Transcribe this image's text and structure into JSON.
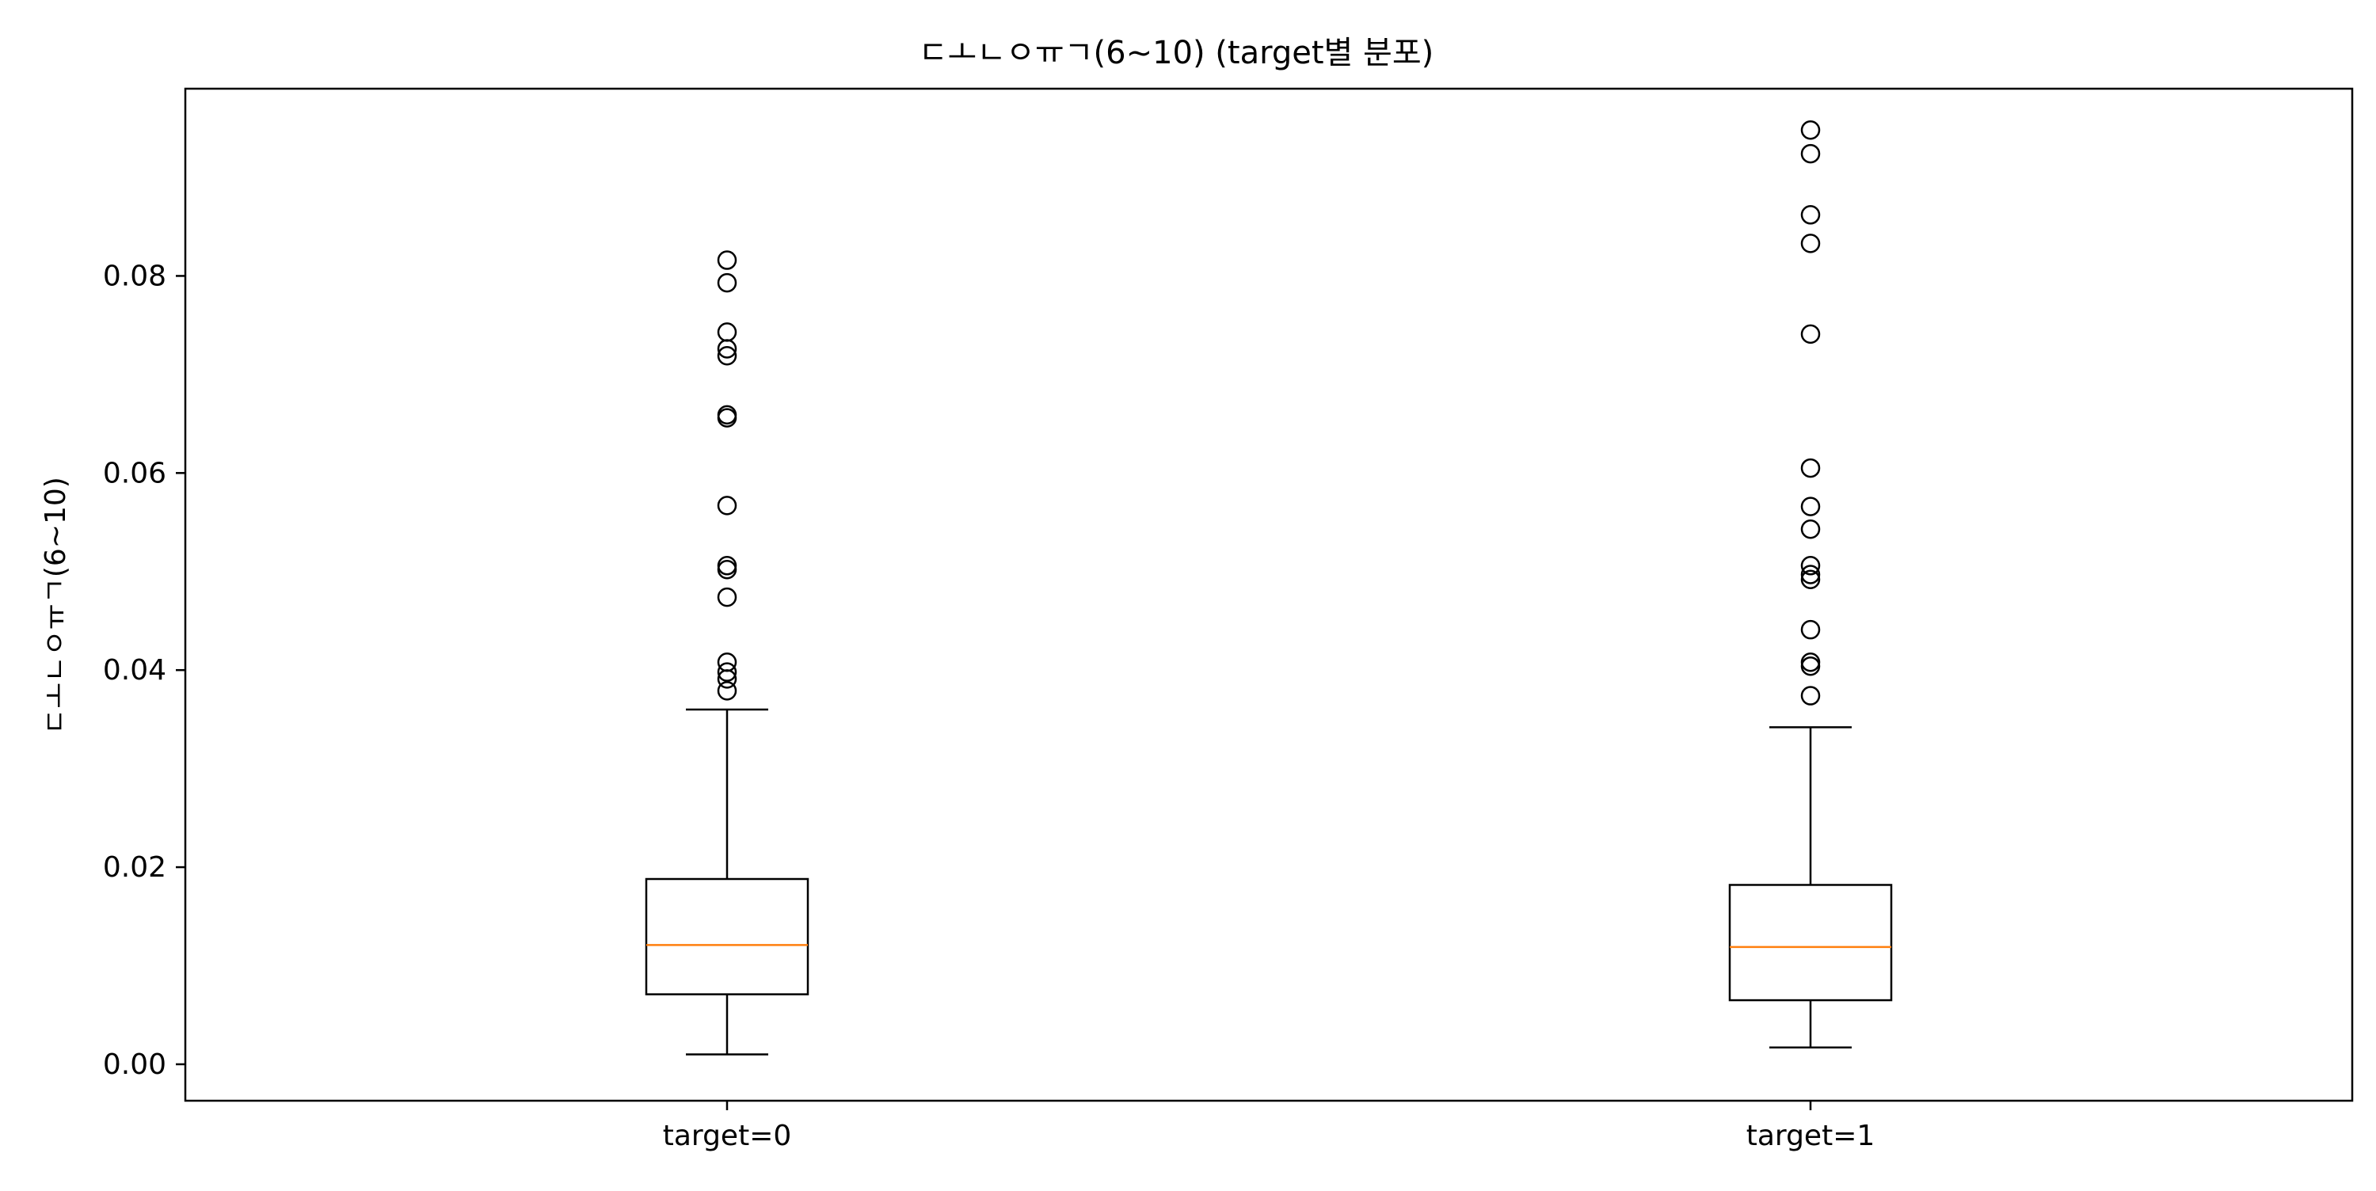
{
  "chart_data": {
    "type": "box",
    "title": "ㄷㅗㄴㅇㅠㄱ(6~10) (target별 분포)",
    "xlabel": "",
    "ylabel": "ㄷㅗㄴㅇㅠㄱ(6~10)",
    "ylim": [
      -0.0037,
      0.099
    ],
    "yticks": [
      0.0,
      0.02,
      0.04,
      0.06,
      0.08
    ],
    "ytick_labels": [
      "0.00",
      "0.02",
      "0.04",
      "0.06",
      "0.08"
    ],
    "grid": false,
    "categories": [
      "target=0",
      "target=1"
    ],
    "boxes": [
      {
        "name": "target=0",
        "whisker_low": 0.001,
        "q1": 0.0071,
        "median": 0.0121,
        "q3": 0.0188,
        "whisker_high": 0.036,
        "outliers": [
          0.0379,
          0.0391,
          0.0398,
          0.0408,
          0.0474,
          0.0502,
          0.0506,
          0.0567,
          0.0656,
          0.0659,
          0.0719,
          0.0726,
          0.0743,
          0.0793,
          0.0816
        ]
      },
      {
        "name": "target=1",
        "whisker_low": 0.0017,
        "q1": 0.0065,
        "median": 0.0119,
        "q3": 0.0182,
        "whisker_high": 0.0342,
        "outliers": [
          0.0374,
          0.0404,
          0.0408,
          0.0441,
          0.0492,
          0.0497,
          0.0506,
          0.0543,
          0.0566,
          0.0605,
          0.0741,
          0.0833,
          0.0862,
          0.0924,
          0.0948
        ]
      }
    ],
    "colors": {
      "box": "#000000",
      "median": "#ff7f0e",
      "outlier": "#000000"
    }
  }
}
